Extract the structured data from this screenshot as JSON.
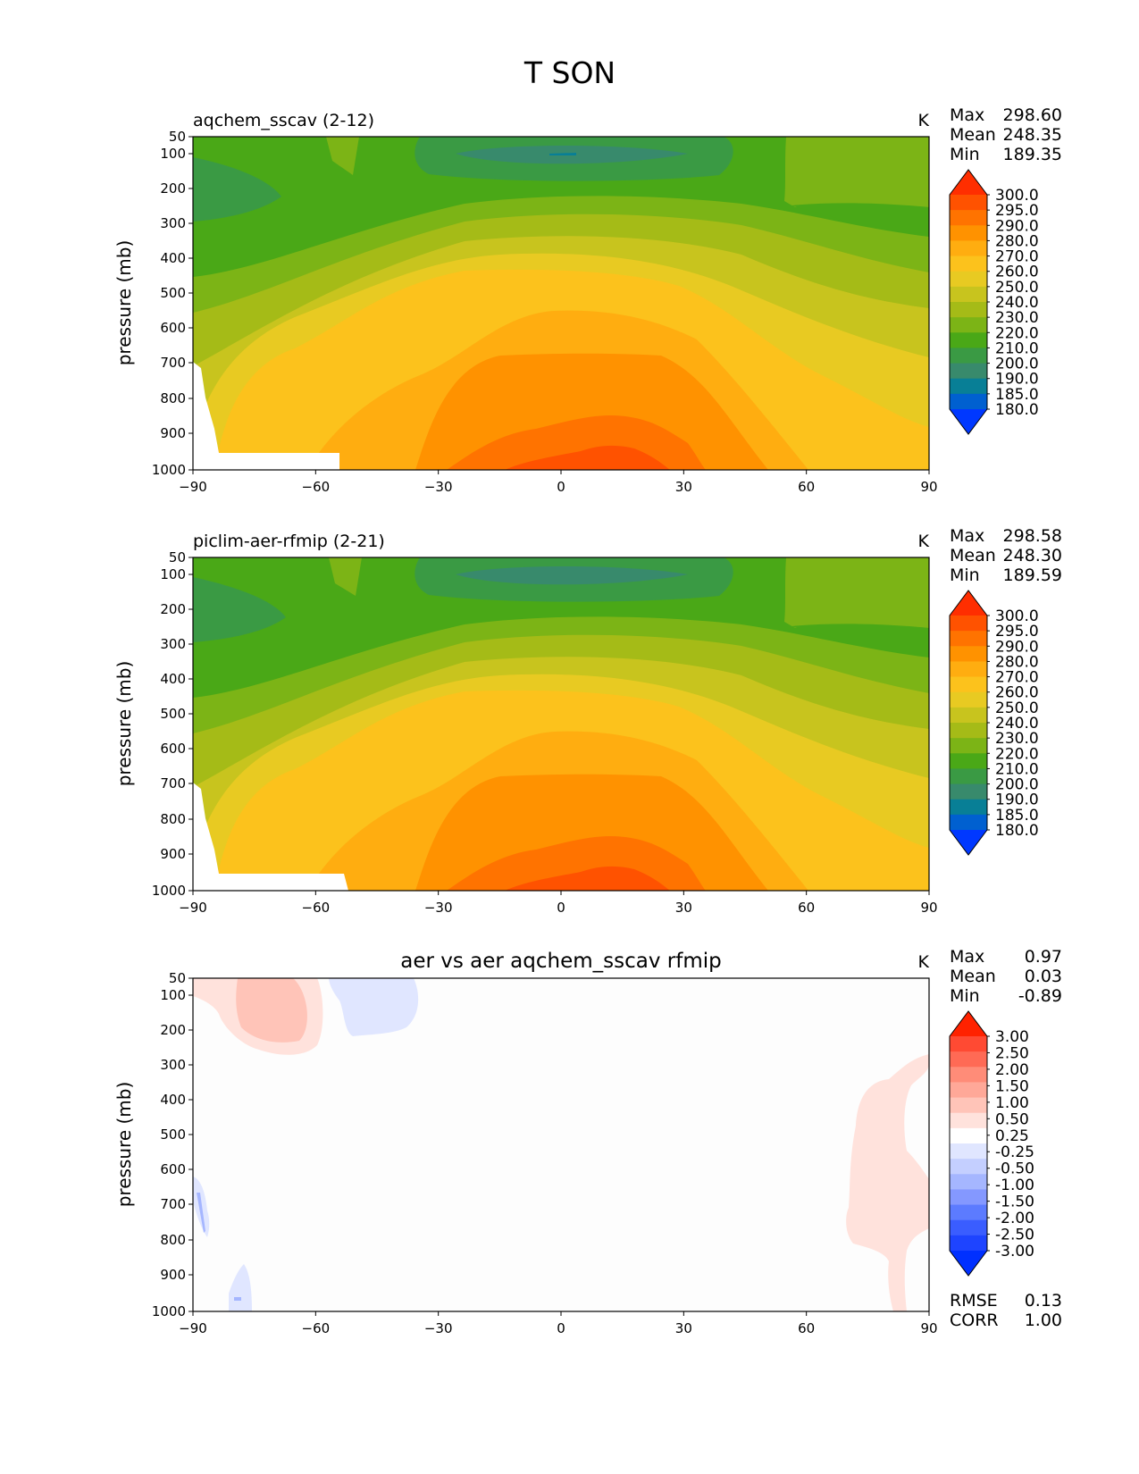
{
  "figure_title": "T SON",
  "chart_data": [
    {
      "type": "contour",
      "title": "aqchem_sscav (2-12)",
      "units": "K",
      "xlabel": "",
      "ylabel": "pressure (mb)",
      "xlim": [
        -90,
        90
      ],
      "xticks": [
        "−90",
        "−60",
        "−30",
        "0",
        "30",
        "60",
        "90"
      ],
      "ylim": [
        1000,
        50
      ],
      "yticks": [
        "50",
        "100",
        "200",
        "300",
        "400",
        "500",
        "600",
        "700",
        "800",
        "900",
        "1000"
      ],
      "stats": {
        "max_label": "Max",
        "max": "298.60",
        "mean_label": "Mean",
        "mean": "248.35",
        "min_label": "Min",
        "min": "189.35"
      },
      "colorbar": {
        "labels": [
          "300.0",
          "295.0",
          "290.0",
          "280.0",
          "270.0",
          "260.0",
          "250.0",
          "240.0",
          "230.0",
          "220.0",
          "210.0",
          "200.0",
          "190.0",
          "185.0",
          "180.0"
        ],
        "colors": [
          "#ff2e00",
          "#ff5200",
          "#ff7300",
          "#ff9200",
          "#ffad10",
          "#fcc21c",
          "#e8ca22",
          "#c8c41e",
          "#a5bb17",
          "#7cb416",
          "#4aa817",
          "#3a9a44",
          "#388a6c",
          "#087f96",
          "#0060d0",
          "#0038ff"
        ]
      },
      "approx_levels_at_surface": [
        {
          "lat": -80,
          "value": 258
        },
        {
          "lat": -50,
          "value": 272
        },
        {
          "lat": -20,
          "value": 288
        },
        {
          "lat": 10,
          "value": 298
        },
        {
          "lat": 40,
          "value": 285
        },
        {
          "lat": 70,
          "value": 265
        },
        {
          "lat": 90,
          "value": 260
        }
      ],
      "approx_tropopause_min": {
        "lat": 0,
        "pressure": 100,
        "value": 189
      }
    },
    {
      "type": "contour",
      "title": "piclim-aer-rfmip (2-21)",
      "units": "K",
      "xlabel": "",
      "ylabel": "pressure (mb)",
      "xlim": [
        -90,
        90
      ],
      "xticks": [
        "−90",
        "−60",
        "−30",
        "0",
        "30",
        "60",
        "90"
      ],
      "ylim": [
        1000,
        50
      ],
      "yticks": [
        "50",
        "100",
        "200",
        "300",
        "400",
        "500",
        "600",
        "700",
        "800",
        "900",
        "1000"
      ],
      "stats": {
        "max_label": "Max",
        "max": "298.58",
        "mean_label": "Mean",
        "mean": "248.30",
        "min_label": "Min",
        "min": "189.59"
      },
      "colorbar": {
        "labels": [
          "300.0",
          "295.0",
          "290.0",
          "280.0",
          "270.0",
          "260.0",
          "250.0",
          "240.0",
          "230.0",
          "220.0",
          "210.0",
          "200.0",
          "190.0",
          "185.0",
          "180.0"
        ],
        "colors": [
          "#ff2e00",
          "#ff5200",
          "#ff7300",
          "#ff9200",
          "#ffad10",
          "#fcc21c",
          "#e8ca22",
          "#c8c41e",
          "#a5bb17",
          "#7cb416",
          "#4aa817",
          "#3a9a44",
          "#388a6c",
          "#087f96",
          "#0060d0",
          "#0038ff"
        ]
      }
    },
    {
      "type": "contour",
      "title": "aer vs aer aqchem_sscav rfmip",
      "units": "K",
      "xlabel": "",
      "ylabel": "pressure (mb)",
      "xlim": [
        -90,
        90
      ],
      "xticks": [
        "−90",
        "−60",
        "−30",
        "0",
        "30",
        "60",
        "90"
      ],
      "ylim": [
        1000,
        50
      ],
      "yticks": [
        "50",
        "100",
        "200",
        "300",
        "400",
        "500",
        "600",
        "700",
        "800",
        "900",
        "1000"
      ],
      "stats": {
        "max_label": "Max",
        "max": "0.97",
        "mean_label": "Mean",
        "mean": "0.03",
        "min_label": "Min",
        "min": "-0.89"
      },
      "extra_stats": {
        "rmse_label": "RMSE",
        "rmse": "0.13",
        "corr_label": "CORR",
        "corr": "1.00"
      },
      "colorbar": {
        "labels": [
          "3.00",
          "2.50",
          "2.00",
          "1.50",
          "1.00",
          "0.50",
          "0.25",
          "-0.25",
          "-0.50",
          "-1.00",
          "-1.50",
          "-2.00",
          "-2.50",
          "-3.00"
        ],
        "colors": [
          "#ff2200",
          "#ff4a33",
          "#ff6a55",
          "#ff8c78",
          "#ffa898",
          "#ffc4b8",
          "#ffe2dc",
          "#ffffff",
          "#e0e6ff",
          "#c4cfff",
          "#a5b6ff",
          "#8498ff",
          "#5c7bff",
          "#3a5dff",
          "#1e44ff",
          "#0030ff"
        ]
      }
    }
  ]
}
